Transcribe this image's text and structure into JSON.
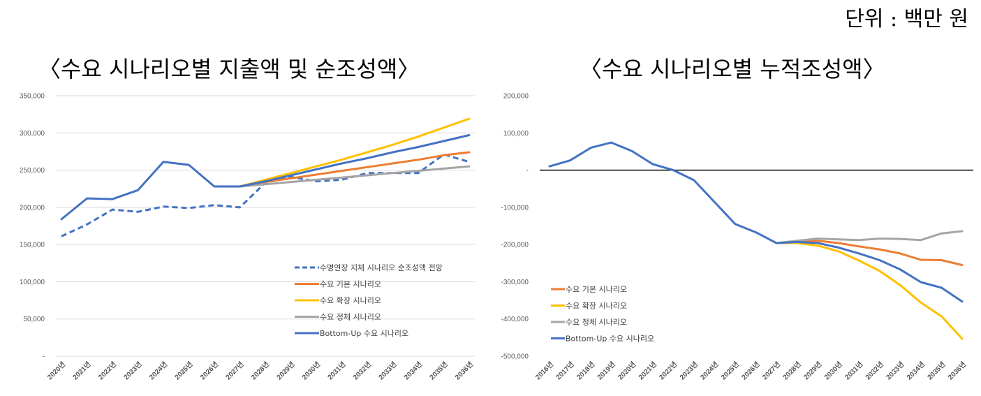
{
  "unit_label": "단위 : 백만 원",
  "titles": {
    "left": "〈수요 시나리오별 지출액 및 순조성액〉",
    "right": "〈수요 시나리오별 누적조성액〉"
  },
  "colors": {
    "dashed": "#4472C4",
    "basic": "#ED7D31",
    "expand": "#FFC000",
    "stagnant": "#A5A5A5",
    "bottomup": "#4472C4",
    "zero_line": "#000000",
    "grid": "#D9D9D9"
  },
  "chart_data": [
    {
      "type": "line",
      "title": "〈수요 시나리오별 지출액 및 순조성액〉",
      "ylim": [
        0,
        350000
      ],
      "yticks": [
        0,
        50000,
        100000,
        150000,
        200000,
        250000,
        300000,
        350000
      ],
      "ytick_labels": [
        "-",
        "50,000",
        "100,000",
        "150,000",
        "200,000",
        "250,000",
        "300,000",
        "350,000"
      ],
      "grid": true,
      "legend_position": "bottom-right",
      "categories": [
        "2020년",
        "2021년",
        "2022년",
        "2023년",
        "2024년",
        "2025년",
        "2026년",
        "2027년",
        "2028년",
        "2029년",
        "2030년",
        "2031년",
        "2032년",
        "2033년",
        "2034년",
        "2035년",
        "2036년"
      ],
      "series": [
        {
          "name": "수명연장 지체 시나리오 순조성액 전망",
          "style": "dashed",
          "color_key": "dashed",
          "values": [
            161000,
            177000,
            197000,
            194000,
            201000,
            199000,
            203000,
            200000,
            233000,
            241000,
            235000,
            237000,
            246000,
            246000,
            246000,
            271000,
            261000
          ]
        },
        {
          "name": "수요 기본 시나리오",
          "style": "solid",
          "color_key": "basic",
          "values": [
            null,
            null,
            null,
            null,
            null,
            null,
            null,
            228000,
            234000,
            239000,
            244000,
            249000,
            254000,
            259000,
            264000,
            270000,
            274000
          ]
        },
        {
          "name": "수요 확장 시나리오",
          "style": "solid",
          "color_key": "expand",
          "values": [
            null,
            null,
            null,
            null,
            null,
            null,
            null,
            228000,
            237000,
            246000,
            255000,
            264000,
            274000,
            284000,
            295000,
            307000,
            319000
          ]
        },
        {
          "name": "수요 정체 시나리오",
          "style": "solid",
          "color_key": "stagnant",
          "values": [
            null,
            null,
            null,
            null,
            null,
            null,
            null,
            228000,
            231000,
            234000,
            237000,
            240000,
            243000,
            246000,
            249000,
            252000,
            255000
          ]
        },
        {
          "name": "Bottom-Up 수요 시나리오",
          "style": "solid",
          "color_key": "bottomup",
          "values": [
            184000,
            212000,
            211000,
            223000,
            261000,
            257000,
            228000,
            228000,
            235000,
            243000,
            251000,
            259000,
            266000,
            274000,
            281000,
            289000,
            297000
          ]
        }
      ]
    },
    {
      "type": "line",
      "title": "〈수요 시나리오별 누적조성액〉",
      "ylim": [
        -500000,
        200000
      ],
      "yticks": [
        -500000,
        -400000,
        -300000,
        -200000,
        -100000,
        0,
        100000,
        200000
      ],
      "ytick_labels": [
        "-500,000",
        "-400,000",
        "-300,000",
        "-200,000",
        "-100,000",
        "-",
        "100,000",
        "200,000"
      ],
      "grid": false,
      "legend_position": "bottom-left",
      "categories": [
        "2016년",
        "2017년",
        "2018년",
        "2019년",
        "2020년",
        "2021년",
        "2022년",
        "2023년",
        "2024년",
        "2025년",
        "2026년",
        "2027년",
        "2028년",
        "2029년",
        "2030년",
        "2031년",
        "2032년",
        "2033년",
        "2034년",
        "2035년",
        "2036년"
      ],
      "series": [
        {
          "name": "수요 기본 시나리오",
          "style": "solid",
          "color_key": "basic",
          "values": [
            null,
            null,
            null,
            null,
            null,
            null,
            null,
            null,
            null,
            null,
            null,
            -196000,
            -194000,
            -190000,
            -196000,
            -205000,
            -213000,
            -224000,
            -241000,
            -242000,
            -255000
          ]
        },
        {
          "name": "수요 확장 시나리오",
          "style": "solid",
          "color_key": "expand",
          "values": [
            null,
            null,
            null,
            null,
            null,
            null,
            null,
            null,
            null,
            null,
            null,
            -196000,
            -196000,
            -203000,
            -218000,
            -243000,
            -271000,
            -309000,
            -356000,
            -393000,
            -453000
          ]
        },
        {
          "name": "수요 정체 시나리오",
          "style": "solid",
          "color_key": "stagnant",
          "values": [
            null,
            null,
            null,
            null,
            null,
            null,
            null,
            null,
            null,
            null,
            null,
            -196000,
            -190000,
            -184000,
            -186000,
            -188000,
            -184000,
            -185000,
            -188000,
            -170000,
            -164000
          ]
        },
        {
          "name": "Bottom-Up 수요 시나리오",
          "style": "solid",
          "color_key": "bottomup",
          "values": [
            10000,
            26000,
            60000,
            74000,
            51000,
            16000,
            0,
            -27000,
            -86000,
            -145000,
            -167000,
            -196000,
            -193000,
            -196000,
            -208000,
            -224000,
            -242000,
            -267000,
            -301000,
            -316000,
            -353000
          ]
        }
      ]
    }
  ]
}
